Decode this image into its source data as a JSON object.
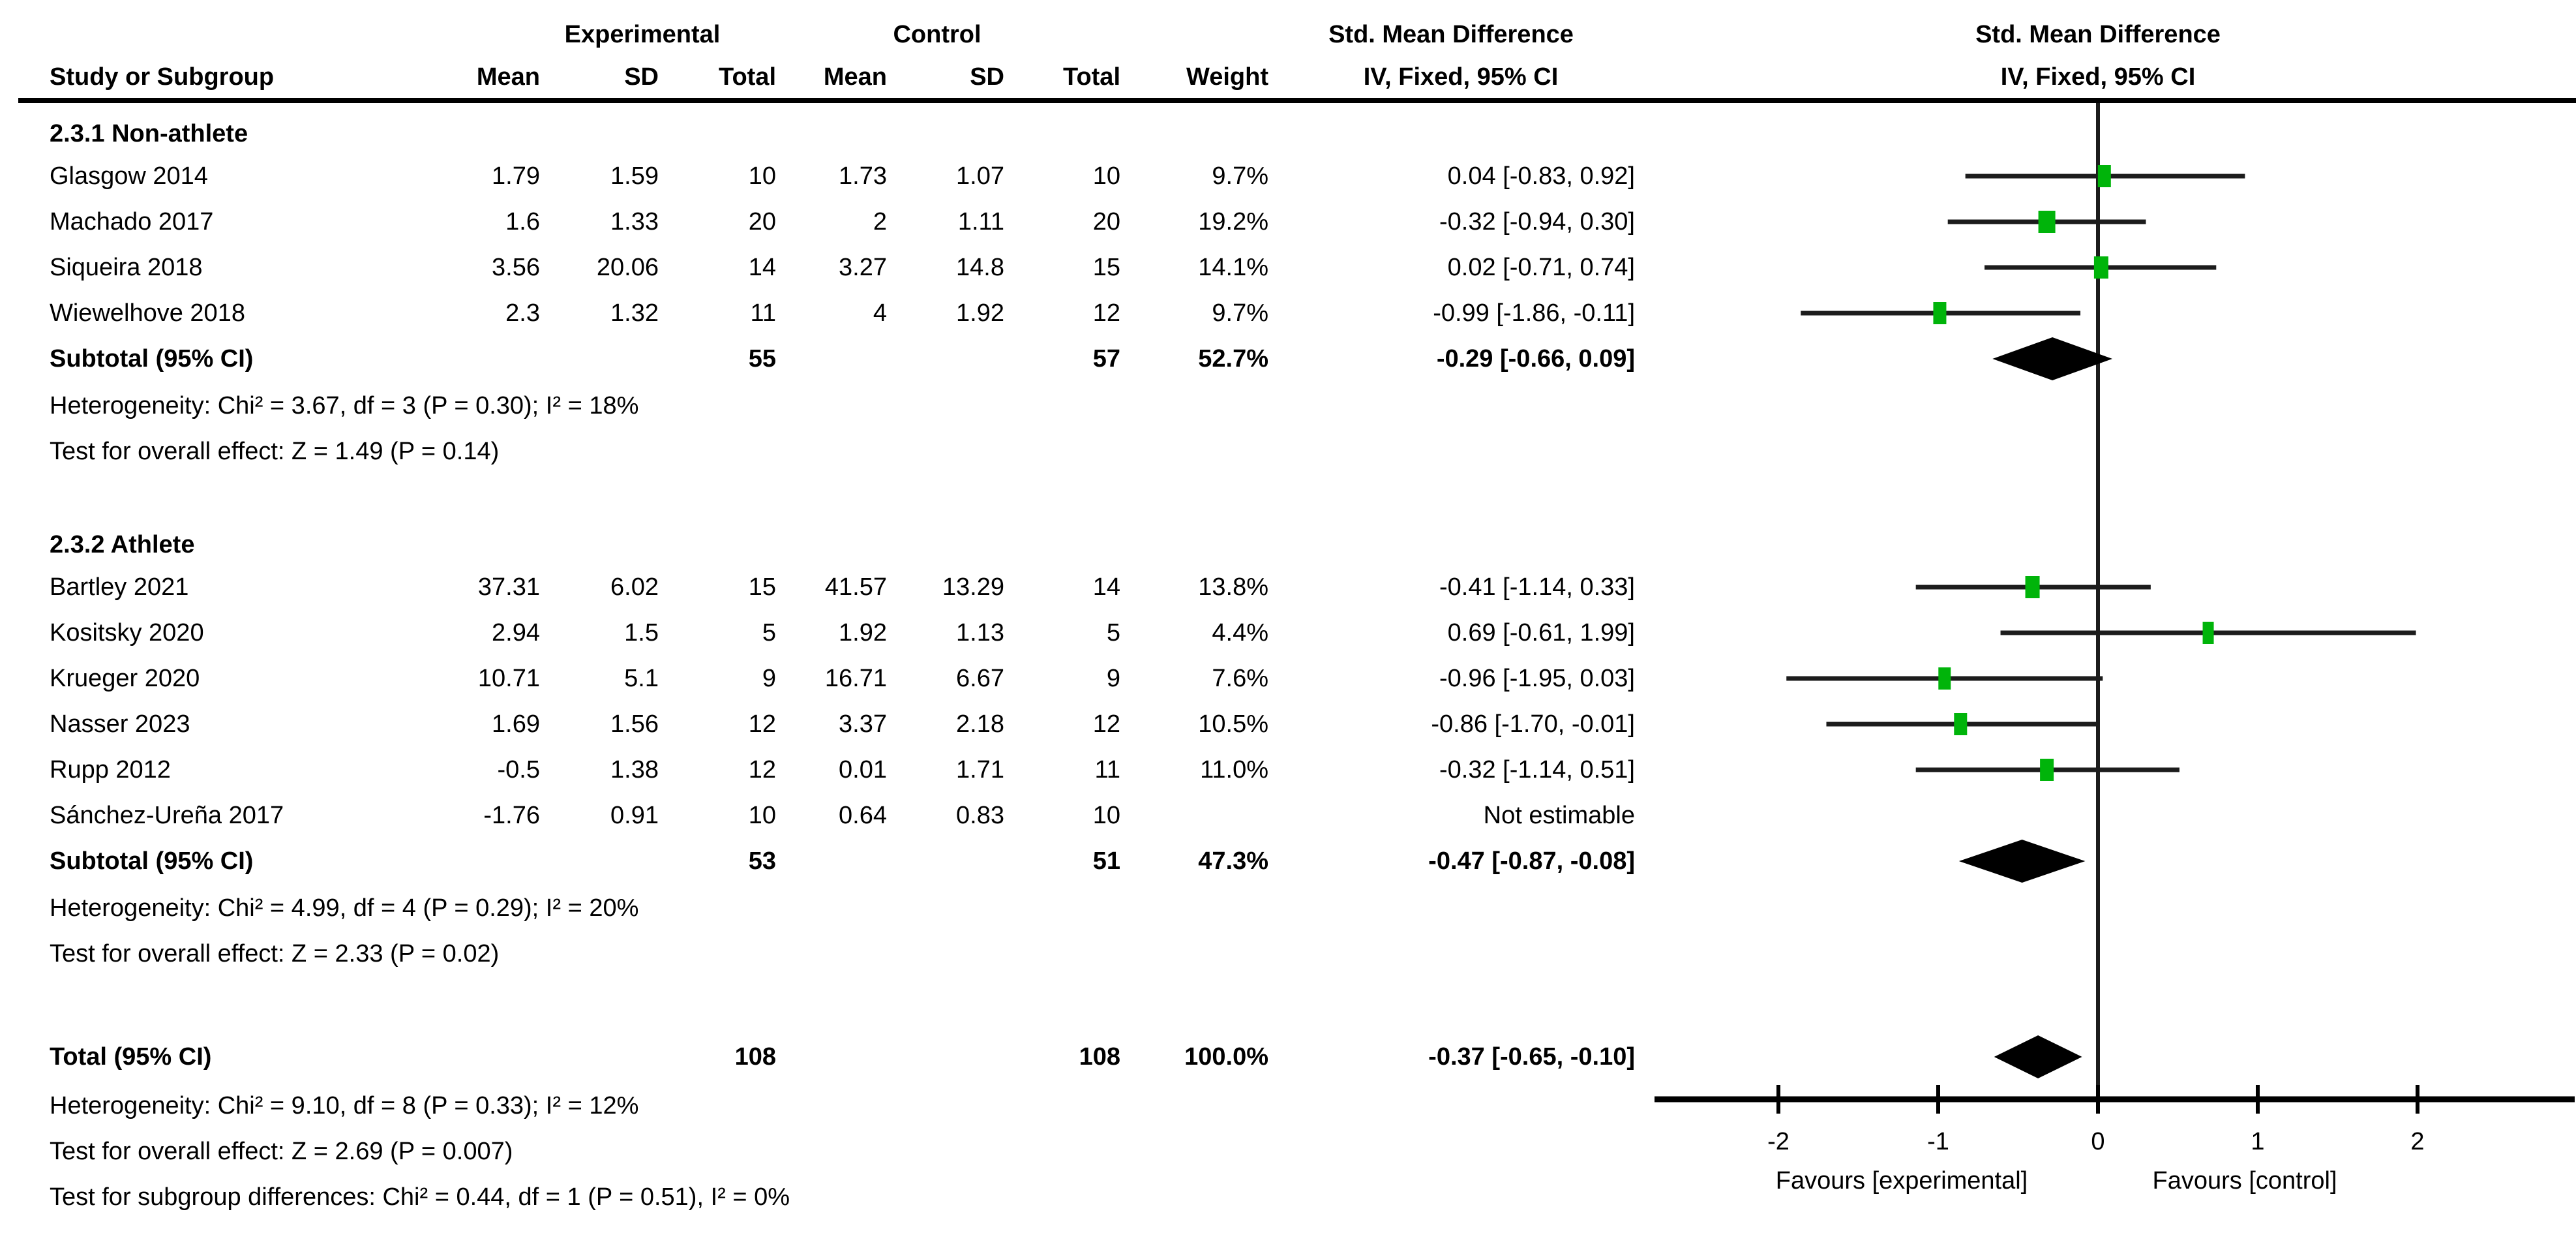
{
  "columns": {
    "study": "Study or Subgroup",
    "mean": "Mean",
    "sd": "SD",
    "total": "Total",
    "weight": "Weight",
    "group_experimental": "Experimental",
    "group_control": "Control",
    "effect": "Std. Mean Difference",
    "method": "IV, Fixed, 95% CI"
  },
  "chart_data": {
    "type": "forest",
    "effect_measure": "Std. Mean Difference",
    "model": "IV, Fixed, 95% CI",
    "subgroups": [
      {
        "label": "2.3.1 Non-athlete",
        "studies": [
          {
            "study": "Glasgow 2014",
            "exp_mean": "1.79",
            "exp_sd": "1.59",
            "exp_total": "10",
            "ctl_mean": "1.73",
            "ctl_sd": "1.07",
            "ctl_total": "10",
            "weight": "9.7%",
            "ci_text": "0.04 [-0.83, 0.92]",
            "smd": 0.04,
            "lo": -0.83,
            "hi": 0.92
          },
          {
            "study": "Machado 2017",
            "exp_mean": "1.6",
            "exp_sd": "1.33",
            "exp_total": "20",
            "ctl_mean": "2",
            "ctl_sd": "1.11",
            "ctl_total": "20",
            "weight": "19.2%",
            "ci_text": "-0.32 [-0.94, 0.30]",
            "smd": -0.32,
            "lo": -0.94,
            "hi": 0.3
          },
          {
            "study": "Siqueira 2018",
            "exp_mean": "3.56",
            "exp_sd": "20.06",
            "exp_total": "14",
            "ctl_mean": "3.27",
            "ctl_sd": "14.8",
            "ctl_total": "15",
            "weight": "14.1%",
            "ci_text": "0.02 [-0.71, 0.74]",
            "smd": 0.02,
            "lo": -0.71,
            "hi": 0.74
          },
          {
            "study": "Wiewelhove 2018",
            "exp_mean": "2.3",
            "exp_sd": "1.32",
            "exp_total": "11",
            "ctl_mean": "4",
            "ctl_sd": "1.92",
            "ctl_total": "12",
            "weight": "9.7%",
            "ci_text": "-0.99 [-1.86, -0.11]",
            "smd": -0.99,
            "lo": -1.86,
            "hi": -0.11
          }
        ],
        "subtotal": {
          "label": "Subtotal (95% CI)",
          "exp_total": "55",
          "ctl_total": "57",
          "weight": "52.7%",
          "ci_text": "-0.29 [-0.66, 0.09]",
          "smd": -0.29,
          "lo": -0.66,
          "hi": 0.09
        },
        "heterogeneity": "Heterogeneity: Chi² = 3.67, df = 3 (P = 0.30); I² = 18%",
        "overall_effect": "Test for overall effect: Z = 1.49 (P = 0.14)"
      },
      {
        "label": "2.3.2 Athlete",
        "studies": [
          {
            "study": "Bartley 2021",
            "exp_mean": "37.31",
            "exp_sd": "6.02",
            "exp_total": "15",
            "ctl_mean": "41.57",
            "ctl_sd": "13.29",
            "ctl_total": "14",
            "weight": "13.8%",
            "ci_text": "-0.41 [-1.14, 0.33]",
            "smd": -0.41,
            "lo": -1.14,
            "hi": 0.33
          },
          {
            "study": "Kositsky 2020",
            "exp_mean": "2.94",
            "exp_sd": "1.5",
            "exp_total": "5",
            "ctl_mean": "1.92",
            "ctl_sd": "1.13",
            "ctl_total": "5",
            "weight": "4.4%",
            "ci_text": "0.69 [-0.61, 1.99]",
            "smd": 0.69,
            "lo": -0.61,
            "hi": 1.99
          },
          {
            "study": "Krueger 2020",
            "exp_mean": "10.71",
            "exp_sd": "5.1",
            "exp_total": "9",
            "ctl_mean": "16.71",
            "ctl_sd": "6.67",
            "ctl_total": "9",
            "weight": "7.6%",
            "ci_text": "-0.96 [-1.95, 0.03]",
            "smd": -0.96,
            "lo": -1.95,
            "hi": 0.03
          },
          {
            "study": "Nasser 2023",
            "exp_mean": "1.69",
            "exp_sd": "1.56",
            "exp_total": "12",
            "ctl_mean": "3.37",
            "ctl_sd": "2.18",
            "ctl_total": "12",
            "weight": "10.5%",
            "ci_text": "-0.86 [-1.70, -0.01]",
            "smd": -0.86,
            "lo": -1.7,
            "hi": -0.01
          },
          {
            "study": "Rupp 2012",
            "exp_mean": "-0.5",
            "exp_sd": "1.38",
            "exp_total": "12",
            "ctl_mean": "0.01",
            "ctl_sd": "1.71",
            "ctl_total": "11",
            "weight": "11.0%",
            "ci_text": "-0.32 [-1.14, 0.51]",
            "smd": -0.32,
            "lo": -1.14,
            "hi": 0.51
          },
          {
            "study": "Sánchez-Ureña 2017",
            "exp_mean": "-1.76",
            "exp_sd": "0.91",
            "exp_total": "10",
            "ctl_mean": "0.64",
            "ctl_sd": "0.83",
            "ctl_total": "10",
            "weight": "",
            "ci_text": "Not estimable",
            "smd": null,
            "lo": null,
            "hi": null
          }
        ],
        "subtotal": {
          "label": "Subtotal (95% CI)",
          "exp_total": "53",
          "ctl_total": "51",
          "weight": "47.3%",
          "ci_text": "-0.47 [-0.87, -0.08]",
          "smd": -0.47,
          "lo": -0.87,
          "hi": -0.08
        },
        "heterogeneity": "Heterogeneity: Chi² = 4.99, df = 4 (P = 0.29); I² = 20%",
        "overall_effect": "Test for overall effect: Z = 2.33 (P = 0.02)"
      }
    ],
    "total": {
      "label": "Total (95% CI)",
      "exp_total": "108",
      "ctl_total": "108",
      "weight": "100.0%",
      "ci_text": "-0.37 [-0.65, -0.10]",
      "smd": -0.37,
      "lo": -0.65,
      "hi": -0.1
    },
    "footer": {
      "heterogeneity": "Heterogeneity: Chi² = 9.10, df = 8 (P = 0.33); I² = 12%",
      "overall_effect": "Test for overall effect: Z = 2.69 (P = 0.007)",
      "subgroup_differences": "Test for subgroup differences: Chi² = 0.44, df = 1 (P = 0.51), I² = 0%"
    },
    "axis": {
      "ticks": [
        -2,
        -1,
        0,
        1,
        2
      ],
      "favours_left": "Favours [experimental]",
      "favours_right": "Favours [control]"
    },
    "colors": {
      "marker_green": "#00b40a",
      "line_black": "#1c1c1c",
      "diamond_black": "#000000"
    }
  }
}
